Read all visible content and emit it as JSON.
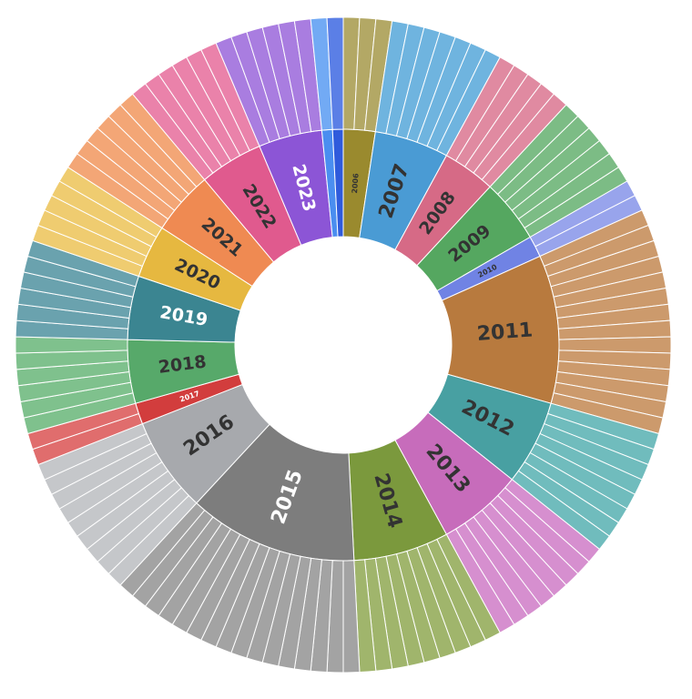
{
  "chart_data": {
    "type": "sunburst",
    "title": "",
    "unit": "items",
    "inner_ring": [
      {
        "year": "2006",
        "value": 3,
        "color": "#9a8a2e",
        "outer_color": "#b3a865",
        "label_color": "#333333"
      },
      {
        "year": "2007",
        "value": 7,
        "color": "#4a9bd4",
        "outer_color": "#6fb4df",
        "label_color": "#333333"
      },
      {
        "year": "2008",
        "value": 5,
        "color": "#d66a86",
        "outer_color": "#e08aa1",
        "label_color": "#333333"
      },
      {
        "year": "2009",
        "value": 6,
        "color": "#55a760",
        "outer_color": "#7cbc85",
        "label_color": "#333333"
      },
      {
        "year": "2010",
        "value": 2,
        "color": "#7083e4",
        "outer_color": "#98a4ec",
        "label_color": "#333333"
      },
      {
        "year": "2011",
        "value": 14,
        "color": "#b87a3e",
        "outer_color": "#cc9a6c",
        "label_color": "#333333"
      },
      {
        "year": "2012",
        "value": 8,
        "color": "#48a0a2",
        "outer_color": "#70bcbd",
        "label_color": "#333333"
      },
      {
        "year": "2013",
        "value": 8,
        "color": "#c76cbb",
        "outer_color": "#d68fcf",
        "label_color": "#333333"
      },
      {
        "year": "2014",
        "value": 9,
        "color": "#7b993d",
        "outer_color": "#a0b56c",
        "label_color": "#333333"
      },
      {
        "year": "2015",
        "value": 16,
        "color": "#7d7d7d",
        "outer_color": "#a3a3a3",
        "label_color": "#ffffff"
      },
      {
        "year": "2016",
        "value": 9,
        "color": "#a7a9ad",
        "outer_color": "#c5c7ca",
        "label_color": "#333333"
      },
      {
        "year": "2017",
        "value": 2,
        "color": "#d23d3d",
        "outer_color": "#e06d6d",
        "label_color": "#ffffff"
      },
      {
        "year": "2018",
        "value": 6,
        "color": "#57a96a",
        "outer_color": "#7fc18d",
        "label_color": "#333333"
      },
      {
        "year": "2019",
        "value": 6,
        "color": "#3b8591",
        "outer_color": "#6aa2ae",
        "label_color": "#ffffff"
      },
      {
        "year": "2020",
        "value": 5,
        "color": "#e6b840",
        "outer_color": "#efcc70",
        "label_color": "#333333"
      },
      {
        "year": "2021",
        "value": 6,
        "color": "#ef8a52",
        "outer_color": "#f3a676",
        "label_color": "#333333"
      },
      {
        "year": "2022",
        "value": 6,
        "color": "#e05a8e",
        "outer_color": "#ea82aa",
        "label_color": "#333333"
      },
      {
        "year": "2023",
        "value": 6,
        "color": "#8c55d6",
        "outer_color": "#a97de0",
        "label_color": "#ffffff"
      },
      {
        "year": "",
        "value": 1,
        "color": "#4a8ef0",
        "outer_color": "#72aaf4",
        "label_color": "#333333"
      },
      {
        "year": "",
        "value": 1,
        "color": "#2f5bdc",
        "outer_color": "#5b7fe6",
        "label_color": "#333333"
      }
    ]
  }
}
